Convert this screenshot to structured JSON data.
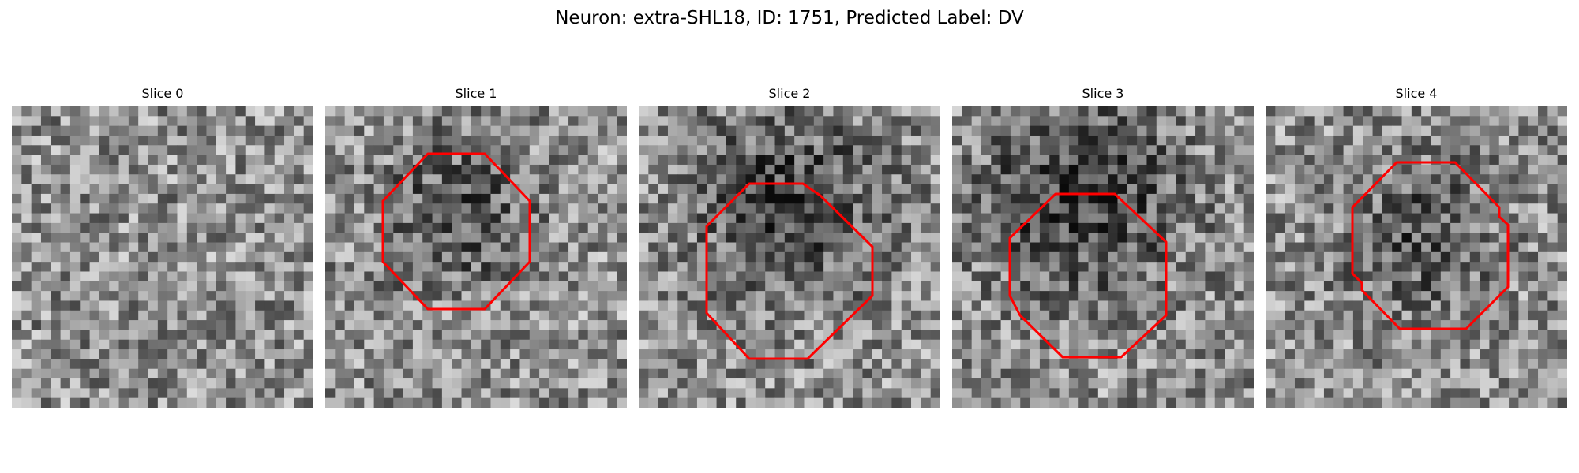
{
  "title": "Neuron: extra-SHL18, ID: 1751, Predicted Label: DV",
  "panels": [
    {
      "label": "Slice 0",
      "contour": false
    },
    {
      "label": "Slice 1",
      "contour": true
    },
    {
      "label": "Slice 2",
      "contour": true
    },
    {
      "label": "Slice 3",
      "contour": true
    },
    {
      "label": "Slice 4",
      "contour": true
    }
  ],
  "colors": {
    "background": "#ffffff",
    "contour": "#ff0000",
    "colormap": "grayscale"
  }
}
